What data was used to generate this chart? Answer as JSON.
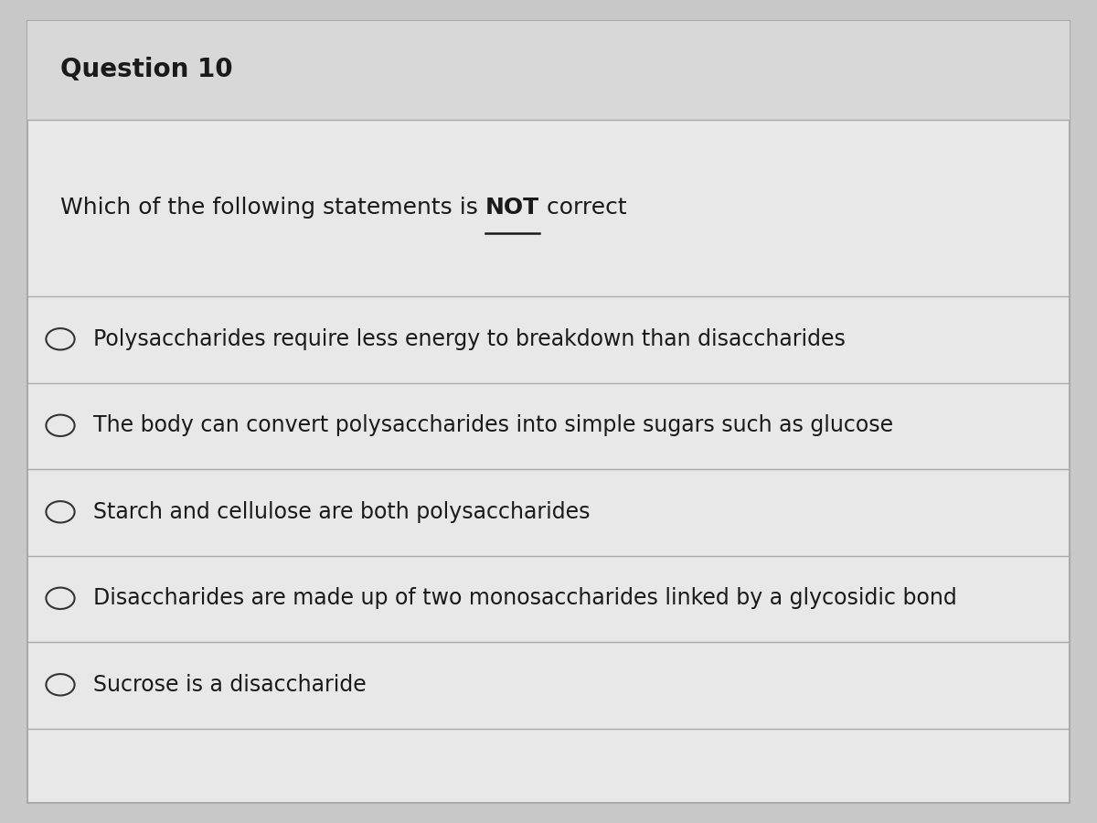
{
  "title": "Question 10",
  "question_prefix": "Which of the following statements is ",
  "question_not": "NOT",
  "question_suffix": " correct",
  "options": [
    "Polysaccharides require less energy to breakdown than disaccharides",
    "The body can convert polysaccharides into simple sugars such as glucose",
    "Starch and cellulose are both polysaccharides",
    "Disaccharides are made up of two monosaccharides linked by a glycosidic bond",
    "Sucrose is a disaccharide"
  ],
  "bg_color": "#c8c8c8",
  "panel_color": "#e8e8e8",
  "title_bg_color": "#d8d8d8",
  "line_color": "#aaaaaa",
  "text_color": "#1a1a1a",
  "title_fontsize": 20,
  "question_fontsize": 18,
  "option_fontsize": 17,
  "circle_color": "#333333"
}
